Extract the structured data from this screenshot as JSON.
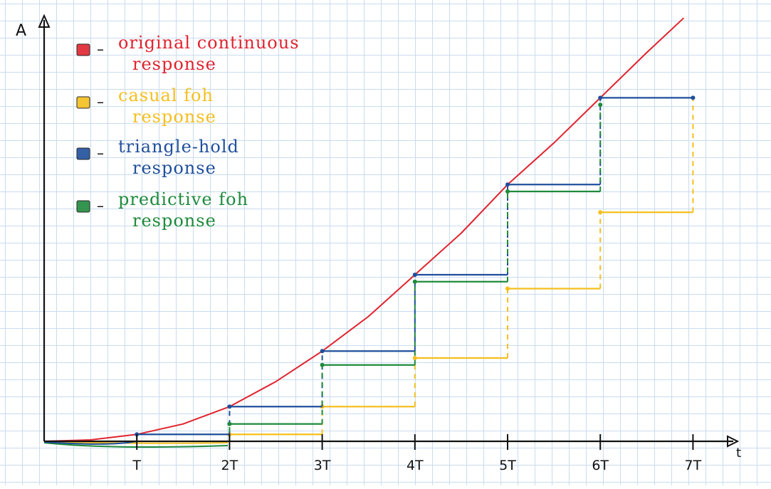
{
  "chart_data": {
    "type": "line",
    "xlabel": "t",
    "ylabel": "A",
    "x_ticks": [
      "T",
      "2T",
      "3T",
      "4T",
      "5T",
      "6T",
      "7T"
    ],
    "xlim": [
      0,
      7.5
    ],
    "ylim": [
      -0.3,
      6
    ],
    "grid": true,
    "legend_position": "top-left",
    "series": [
      {
        "key": "original",
        "name": "original continuous response",
        "style": "curve",
        "color": "#e0242f",
        "x": [
          0,
          0.5,
          1,
          1.5,
          2,
          2.5,
          3,
          3.5,
          4,
          4.5,
          5,
          5.5,
          6,
          6.5,
          6.9
        ],
        "y": [
          0,
          0.02,
          0.1,
          0.25,
          0.5,
          0.86,
          1.3,
          1.8,
          2.4,
          3.0,
          3.7,
          4.3,
          4.95,
          5.6,
          6.1
        ]
      },
      {
        "key": "causal",
        "name": "casual foh response",
        "style": "steps",
        "color": "#f5bf1e",
        "x": [
          2,
          3,
          4,
          5,
          6,
          7
        ],
        "y": [
          0.1,
          0.5,
          1.2,
          2.2,
          3.3,
          4.95
        ]
      },
      {
        "key": "triangle",
        "name": "triangle-hold response",
        "style": "steps",
        "color": "#1f4f9c",
        "x": [
          1,
          2,
          3,
          4,
          5,
          6,
          7
        ],
        "y": [
          0.1,
          0.5,
          1.3,
          2.4,
          3.7,
          4.95,
          4.95
        ]
      },
      {
        "key": "predictive",
        "name": "predictive foh response",
        "style": "steps",
        "color": "#1f8a3b",
        "x": [
          2,
          3,
          4,
          5,
          6
        ],
        "y": [
          0.25,
          1.1,
          2.3,
          3.6,
          4.85
        ]
      }
    ],
    "legend": [
      {
        "dash": "–",
        "lines": [
          "original continuous",
          "response"
        ],
        "color": "#e0242f"
      },
      {
        "dash": "–",
        "lines": [
          "casual foh",
          "response"
        ],
        "color": "#f5bf1e"
      },
      {
        "dash": "–",
        "lines": [
          "triangle-hold",
          "response"
        ],
        "color": "#1f4f9c"
      },
      {
        "dash": "–",
        "lines": [
          "predictive foh",
          "response"
        ],
        "color": "#1f8a3b"
      }
    ]
  }
}
